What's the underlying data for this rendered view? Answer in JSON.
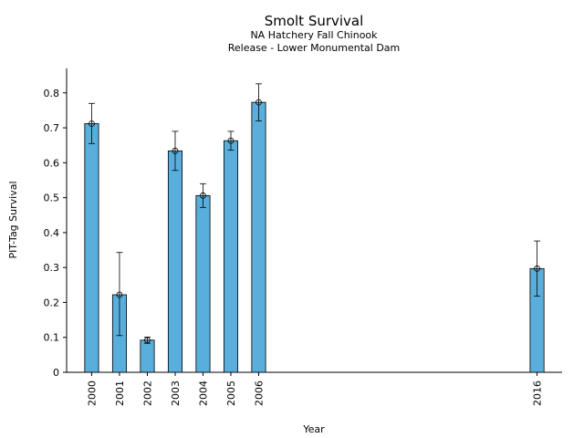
{
  "chart_data": {
    "type": "bar",
    "title": "Smolt Survival",
    "subtitle_lines": [
      "NA Hatchery Fall Chinook",
      "Release - Lower Monumental Dam"
    ],
    "xlabel": "Year",
    "ylabel": "PIT-Tag Survival",
    "ylim": [
      0,
      0.87
    ],
    "yticks": [
      0,
      0.1,
      0.2,
      0.3,
      0.4,
      0.5,
      0.6,
      0.7,
      0.8
    ],
    "xlim": [
      1999.1,
      2016.9
    ],
    "bar_width_years": 0.5,
    "grid": false,
    "bar_color": "#5aaedb",
    "series": [
      {
        "name": "Survival",
        "points": [
          {
            "year": 2000,
            "value": 0.712,
            "ci_low": 0.655,
            "ci_high": 0.77
          },
          {
            "year": 2001,
            "value": 0.222,
            "ci_low": 0.105,
            "ci_high": 0.343
          },
          {
            "year": 2002,
            "value": 0.092,
            "ci_low": 0.083,
            "ci_high": 0.101
          },
          {
            "year": 2003,
            "value": 0.634,
            "ci_low": 0.578,
            "ci_high": 0.69
          },
          {
            "year": 2004,
            "value": 0.506,
            "ci_low": 0.472,
            "ci_high": 0.54
          },
          {
            "year": 2005,
            "value": 0.663,
            "ci_low": 0.636,
            "ci_high": 0.69
          },
          {
            "year": 2006,
            "value": 0.773,
            "ci_low": 0.72,
            "ci_high": 0.826
          },
          {
            "year": 2016,
            "value": 0.297,
            "ci_low": 0.218,
            "ci_high": 0.376
          }
        ]
      }
    ]
  }
}
